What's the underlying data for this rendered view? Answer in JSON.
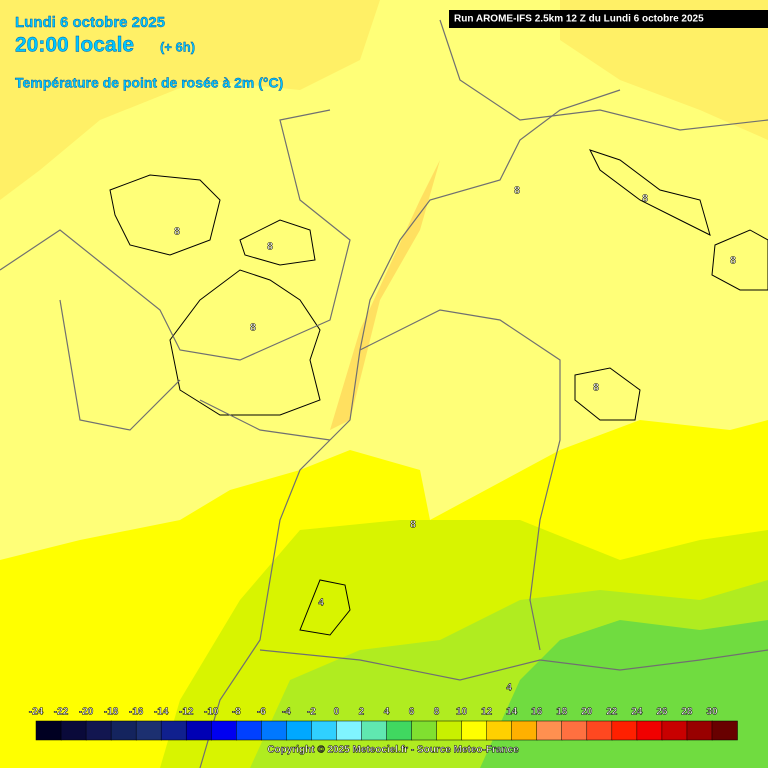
{
  "header": {
    "date": "Lundi 6 octobre 2025",
    "time": "20:00 locale",
    "step": "(+ 6h)",
    "variable": "Température de point de rosée à 2m (°C)",
    "run": "Run AROME-IFS 2.5km 12 Z du Lundi 6 octobre 2025"
  },
  "map": {
    "contour_labels": [
      8,
      8,
      8,
      8,
      8,
      8,
      8,
      8,
      4,
      4
    ]
  },
  "legend": {
    "ticks": [
      -24,
      -22,
      -20,
      -18,
      -16,
      -14,
      -12,
      -10,
      -8,
      -6,
      -4,
      -2,
      0,
      2,
      4,
      6,
      8,
      10,
      12,
      14,
      16,
      18,
      20,
      22,
      24,
      26,
      28,
      30
    ],
    "colors": [
      "#000022",
      "#0a0a3a",
      "#121650",
      "#14245e",
      "#1c3070",
      "#10208e",
      "#0000b4",
      "#0000f0",
      "#0040ff",
      "#0078ff",
      "#00a8ff",
      "#30d0ff",
      "#80f4ff",
      "#60e8b0",
      "#40d860",
      "#80e030",
      "#c8f000",
      "#ffff00",
      "#ffd000",
      "#ffb000",
      "#ff9050",
      "#ff7040",
      "#ff4820",
      "#ff2000",
      "#f00000",
      "#c80000",
      "#980000",
      "#680000"
    ]
  },
  "footer": {
    "copyright": "Copyright © 2025 Meteociel.fr - Source Meteo-France"
  }
}
